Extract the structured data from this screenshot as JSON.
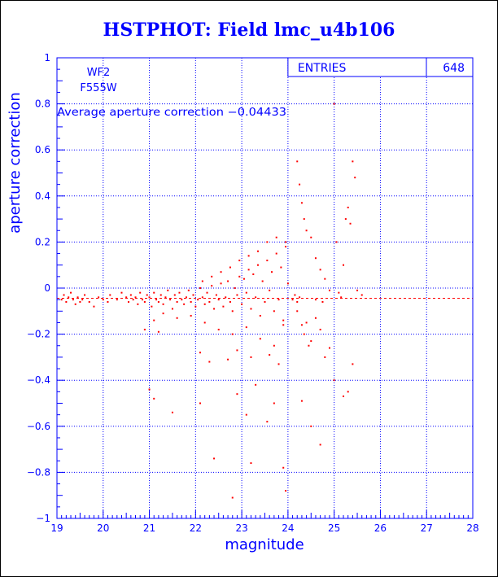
{
  "chart_data": {
    "type": "scatter",
    "title": "HSTPHOT: Field lmc_u4b106",
    "xlabel": "magnitude",
    "ylabel": "aperture correction",
    "xlim": [
      19,
      28
    ],
    "ylim": [
      -1,
      1
    ],
    "x_ticks": [
      19,
      20,
      21,
      22,
      23,
      24,
      25,
      26,
      27,
      28
    ],
    "y_ticks": [
      -1,
      -0.8,
      -0.6,
      -0.4,
      -0.2,
      0,
      0.2,
      0.4,
      0.6,
      0.8,
      1
    ],
    "x_tick_labels": [
      "19",
      "20",
      "21",
      "22",
      "23",
      "24",
      "25",
      "26",
      "27",
      "28"
    ],
    "y_tick_labels": [
      "−1",
      "−0.8",
      "−0.6",
      "−0.4",
      "−0.2",
      "0",
      "0.2",
      "0.4",
      "0.6",
      "0.8",
      "1"
    ],
    "grid": true,
    "colors": {
      "axes": "#0000ff",
      "points": "#ff0000",
      "title": "#0000ff"
    },
    "annotations": {
      "camera": "WF2",
      "filter": "F555W",
      "average_text": "Average aperture correction −0.04433"
    },
    "stats_box": {
      "label": "ENTRIES",
      "value": "648"
    },
    "average_line": {
      "y": -0.04433,
      "style": "dashed"
    },
    "series": [
      {
        "points": [
          [
            19.1,
            -0.05
          ],
          [
            19.15,
            -0.03
          ],
          [
            19.2,
            -0.06
          ],
          [
            19.25,
            -0.04
          ],
          [
            19.3,
            -0.02
          ],
          [
            19.35,
            -0.05
          ],
          [
            19.4,
            -0.07
          ],
          [
            19.45,
            -0.04
          ],
          [
            19.5,
            -0.06
          ],
          [
            19.55,
            -0.05
          ],
          [
            19.6,
            -0.03
          ],
          [
            19.7,
            -0.06
          ],
          [
            19.8,
            -0.08
          ],
          [
            19.9,
            -0.04
          ],
          [
            20.0,
            -0.05
          ],
          [
            20.1,
            -0.06
          ],
          [
            20.15,
            -0.03
          ],
          [
            20.3,
            -0.05
          ],
          [
            20.4,
            -0.02
          ],
          [
            20.5,
            -0.04
          ],
          [
            20.55,
            -0.06
          ],
          [
            20.6,
            -0.03
          ],
          [
            20.65,
            -0.05
          ],
          [
            20.7,
            -0.04
          ],
          [
            20.75,
            -0.07
          ],
          [
            20.8,
            -0.02
          ],
          [
            20.85,
            -0.05
          ],
          [
            20.9,
            -0.06
          ],
          [
            20.95,
            -0.03
          ],
          [
            21.0,
            -0.04
          ],
          [
            21.05,
            -0.08
          ],
          [
            21.1,
            -0.02
          ],
          [
            21.15,
            -0.05
          ],
          [
            21.2,
            -0.06
          ],
          [
            21.25,
            -0.03
          ],
          [
            21.3,
            -0.07
          ],
          [
            21.35,
            -0.04
          ],
          [
            21.4,
            -0.01
          ],
          [
            21.45,
            -0.05
          ],
          [
            21.5,
            -0.09
          ],
          [
            21.55,
            -0.03
          ],
          [
            21.6,
            -0.06
          ],
          [
            21.65,
            -0.02
          ],
          [
            21.7,
            -0.05
          ],
          [
            21.75,
            -0.07
          ],
          [
            21.8,
            -0.04
          ],
          [
            21.85,
            -0.01
          ],
          [
            21.9,
            -0.06
          ],
          [
            21.95,
            -0.03
          ],
          [
            22.0,
            -0.08
          ],
          [
            22.05,
            -0.05
          ],
          [
            22.1,
            0.0
          ],
          [
            22.15,
            -0.04
          ],
          [
            22.2,
            -0.07
          ],
          [
            22.25,
            -0.02
          ],
          [
            22.3,
            -0.06
          ],
          [
            22.35,
            0.01
          ],
          [
            22.4,
            -0.09
          ],
          [
            22.45,
            -0.03
          ],
          [
            22.5,
            -0.05
          ],
          [
            22.55,
            0.02
          ],
          [
            22.6,
            -0.08
          ],
          [
            22.65,
            -0.04
          ],
          [
            22.7,
            0.03
          ],
          [
            22.75,
            -0.06
          ],
          [
            22.8,
            -0.1
          ],
          [
            22.85,
            0.0
          ],
          [
            22.9,
            -0.03
          ],
          [
            22.95,
            0.05
          ],
          [
            23.0,
            -0.07
          ],
          [
            23.05,
            0.04
          ],
          [
            23.1,
            -0.02
          ],
          [
            23.15,
            0.08
          ],
          [
            23.2,
            -0.09
          ],
          [
            23.25,
            0.06
          ],
          [
            23.3,
            -0.04
          ],
          [
            23.35,
            0.1
          ],
          [
            23.4,
            -0.12
          ],
          [
            23.45,
            0.03
          ],
          [
            23.5,
            -0.06
          ],
          [
            23.55,
            0.12
          ],
          [
            23.6,
            -0.01
          ],
          [
            23.65,
            0.07
          ],
          [
            23.7,
            -0.1
          ],
          [
            23.75,
            0.15
          ],
          [
            23.8,
            -0.05
          ],
          [
            23.85,
            0.09
          ],
          [
            23.9,
            -0.14
          ],
          [
            23.95,
            0.18
          ],
          [
            24.0,
            0.02
          ],
          [
            22.15,
            0.03
          ],
          [
            22.35,
            0.05
          ],
          [
            22.55,
            0.07
          ],
          [
            22.75,
            0.09
          ],
          [
            22.95,
            0.12
          ],
          [
            23.15,
            0.14
          ],
          [
            23.35,
            0.16
          ],
          [
            23.55,
            0.2
          ],
          [
            23.75,
            0.22
          ],
          [
            23.95,
            0.2
          ],
          [
            22.2,
            -0.15
          ],
          [
            22.5,
            -0.18
          ],
          [
            22.8,
            -0.2
          ],
          [
            23.1,
            -0.17
          ],
          [
            23.4,
            -0.22
          ],
          [
            23.7,
            -0.25
          ],
          [
            23.9,
            -0.16
          ],
          [
            21.1,
            -0.14
          ],
          [
            21.3,
            -0.11
          ],
          [
            21.6,
            -0.13
          ],
          [
            21.9,
            -0.12
          ],
          [
            21.2,
            -0.19
          ],
          [
            20.9,
            -0.18
          ],
          [
            22.1,
            -0.28
          ],
          [
            22.3,
            -0.32
          ],
          [
            22.7,
            -0.31
          ],
          [
            22.9,
            -0.27
          ],
          [
            23.2,
            -0.3
          ],
          [
            23.6,
            -0.29
          ],
          [
            23.8,
            -0.33
          ],
          [
            21.0,
            -0.44
          ],
          [
            21.1,
            -0.48
          ],
          [
            22.9,
            -0.46
          ],
          [
            23.3,
            -0.42
          ],
          [
            23.7,
            -0.5
          ],
          [
            23.55,
            -0.58
          ],
          [
            22.1,
            -0.5
          ],
          [
            21.5,
            -0.54
          ],
          [
            23.1,
            -0.55
          ],
          [
            22.4,
            -0.74
          ],
          [
            23.2,
            -0.76
          ],
          [
            23.9,
            -0.78
          ],
          [
            22.8,
            -0.91
          ],
          [
            23.95,
            -0.88
          ],
          [
            24.2,
            0.55
          ],
          [
            24.25,
            0.45
          ],
          [
            24.3,
            0.37
          ],
          [
            24.35,
            0.3
          ],
          [
            24.4,
            0.25
          ],
          [
            24.5,
            0.22
          ],
          [
            24.6,
            0.13
          ],
          [
            24.7,
            0.08
          ],
          [
            24.8,
            0.04
          ],
          [
            24.9,
            -0.01
          ],
          [
            25.0,
            0.8
          ],
          [
            25.05,
            0.2
          ],
          [
            25.1,
            -0.02
          ],
          [
            25.2,
            0.1
          ],
          [
            25.25,
            0.3
          ],
          [
            25.3,
            0.35
          ],
          [
            25.35,
            0.28
          ],
          [
            25.4,
            0.55
          ],
          [
            25.45,
            0.48
          ],
          [
            25.5,
            -0.01
          ],
          [
            24.2,
            -0.1
          ],
          [
            24.3,
            -0.16
          ],
          [
            24.35,
            -0.2
          ],
          [
            24.4,
            -0.15
          ],
          [
            24.45,
            -0.25
          ],
          [
            24.5,
            -0.23
          ],
          [
            24.6,
            -0.13
          ],
          [
            24.7,
            -0.18
          ],
          [
            24.8,
            -0.3
          ],
          [
            24.9,
            -0.26
          ],
          [
            25.0,
            -0.4
          ],
          [
            25.2,
            -0.47
          ],
          [
            25.3,
            -0.45
          ],
          [
            24.3,
            -0.49
          ],
          [
            24.5,
            -0.6
          ],
          [
            24.7,
            -0.68
          ],
          [
            25.4,
            -0.33
          ],
          [
            24.1,
            -0.05
          ],
          [
            24.15,
            -0.03
          ],
          [
            24.2,
            -0.06
          ],
          [
            24.25,
            -0.04
          ],
          [
            24.6,
            -0.05
          ],
          [
            24.75,
            -0.06
          ],
          [
            25.15,
            -0.04
          ],
          [
            25.6,
            -0.03
          ]
        ]
      }
    ]
  }
}
